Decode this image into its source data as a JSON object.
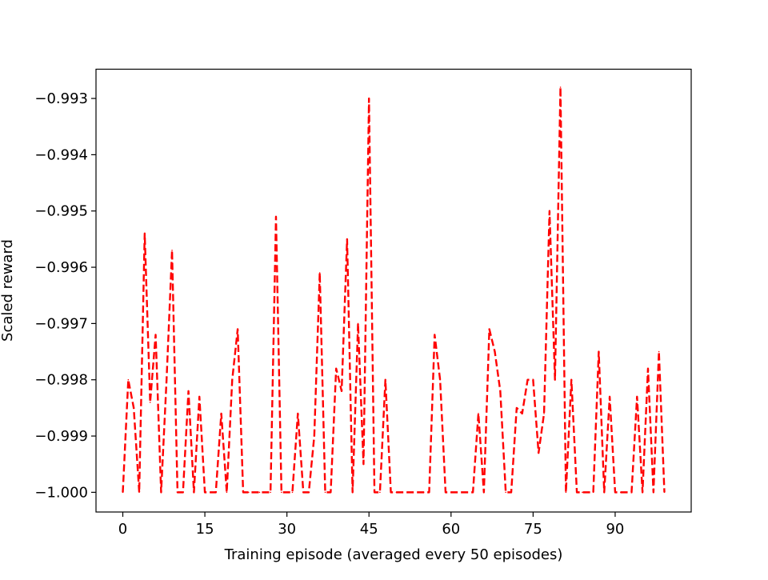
{
  "chart_data": {
    "type": "line",
    "title": "",
    "xlabel": "Training episode (averaged every 50 episodes)",
    "ylabel": "Scaled reward",
    "xlim": [
      -4.9,
      103.9
    ],
    "ylim": [
      -1.00035,
      -0.99248
    ],
    "xticks": [
      0,
      15,
      30,
      45,
      60,
      75,
      90
    ],
    "xtick_labels": [
      "0",
      "15",
      "30",
      "45",
      "60",
      "75",
      "90"
    ],
    "yticks": [
      -1.0,
      -0.999,
      -0.998,
      -0.997,
      -0.996,
      -0.995,
      -0.994,
      -0.993
    ],
    "ytick_labels": [
      "−1.000",
      "−0.999",
      "−0.998",
      "−0.997",
      "−0.996",
      "−0.995",
      "−0.994",
      "−0.993"
    ],
    "grid": false,
    "legend": "none",
    "series": [
      {
        "color": "#ff0000",
        "linestyle": "dashed",
        "x": [
          0,
          1,
          2,
          3,
          4,
          5,
          6,
          7,
          8,
          9,
          10,
          11,
          12,
          13,
          14,
          15,
          16,
          17,
          18,
          19,
          20,
          21,
          22,
          23,
          24,
          25,
          26,
          27,
          28,
          29,
          30,
          31,
          32,
          33,
          34,
          35,
          36,
          37,
          38,
          39,
          40,
          41,
          42,
          43,
          44,
          45,
          46,
          47,
          48,
          49,
          50,
          51,
          52,
          53,
          54,
          55,
          56,
          57,
          58,
          59,
          60,
          61,
          62,
          63,
          64,
          65,
          66,
          67,
          68,
          69,
          70,
          71,
          72,
          73,
          74,
          75,
          76,
          77,
          78,
          79,
          80,
          81,
          82,
          83,
          84,
          85,
          86,
          87,
          88,
          89,
          90,
          91,
          92,
          93,
          94,
          95,
          96,
          97,
          98,
          99
        ],
        "y": [
          -1.0,
          -0.998,
          -0.9985,
          -1.0,
          -0.9954,
          -0.9984,
          -0.9972,
          -1.0,
          -0.998,
          -0.9957,
          -1.0,
          -1.0,
          -0.9982,
          -1.0,
          -0.9983,
          -1.0,
          -1.0,
          -1.0,
          -0.9986,
          -1.0,
          -0.998,
          -0.9971,
          -1.0,
          -1.0,
          -1.0,
          -1.0,
          -1.0,
          -1.0,
          -0.9951,
          -1.0,
          -1.0,
          -1.0,
          -0.9986,
          -1.0,
          -1.0,
          -0.999,
          -0.9961,
          -1.0,
          -1.0,
          -0.9978,
          -0.9982,
          -0.9955,
          -1.0,
          -0.997,
          -0.9995,
          -0.993,
          -1.0,
          -1.0,
          -0.998,
          -1.0,
          -1.0,
          -1.0,
          -1.0,
          -1.0,
          -1.0,
          -1.0,
          -1.0,
          -0.9972,
          -0.998,
          -1.0,
          -1.0,
          -1.0,
          -1.0,
          -1.0,
          -1.0,
          -0.9986,
          -1.0,
          -0.9971,
          -0.9975,
          -0.9982,
          -1.0,
          -1.0,
          -0.9985,
          -0.9986,
          -0.998,
          -0.998,
          -0.9993,
          -0.9986,
          -0.995,
          -0.998,
          -0.9928,
          -1.0,
          -0.998,
          -1.0,
          -1.0,
          -1.0,
          -1.0,
          -0.9975,
          -1.0,
          -0.9983,
          -1.0,
          -1.0,
          -1.0,
          -1.0,
          -0.9983,
          -1.0,
          -0.9978,
          -1.0,
          -0.9975,
          -1.0
        ]
      }
    ]
  }
}
